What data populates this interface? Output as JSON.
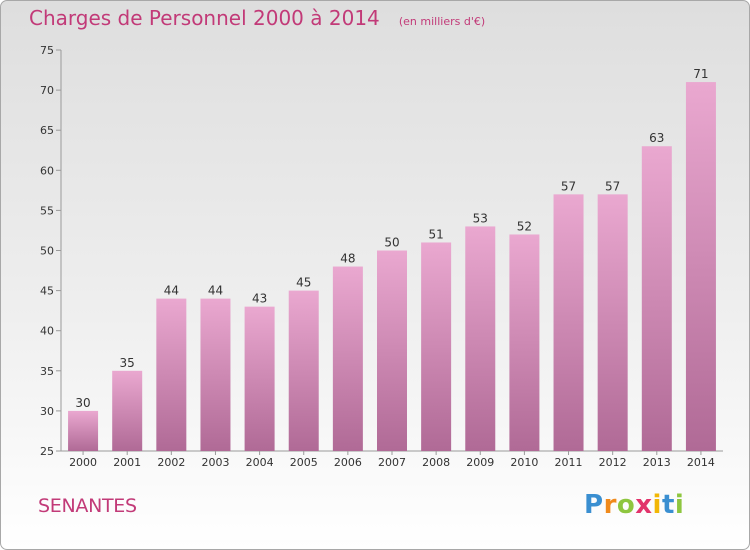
{
  "header": {
    "title": "Charges de Personnel 2000 à 2014",
    "subtitle": "(en milliers d'€)"
  },
  "commune": "SENANTES",
  "logo": {
    "letters": [
      "P",
      "r",
      "o",
      "x",
      "i",
      "t",
      "i"
    ],
    "colors": [
      "#3a8fd1",
      "#f08a1c",
      "#8ec63f",
      "#e2336b",
      "#f2b705",
      "#3a8fd1",
      "#8ec63f"
    ]
  },
  "colors": {
    "accent": "#c23a78",
    "bar_top": "#eaa8d0",
    "bar_bottom": "#b06a96"
  },
  "chart_data": {
    "type": "bar",
    "title": "Charges de Personnel 2000 à 2014",
    "subtitle": "(en milliers d'€)",
    "xlabel": "",
    "ylabel": "",
    "categories": [
      "2000",
      "2001",
      "2002",
      "2003",
      "2004",
      "2005",
      "2006",
      "2007",
      "2008",
      "2009",
      "2010",
      "2011",
      "2012",
      "2013",
      "2014"
    ],
    "values": [
      30,
      35,
      44,
      44,
      43,
      45,
      48,
      50,
      51,
      53,
      52,
      57,
      57,
      63,
      71
    ],
    "ylim": [
      25,
      75
    ],
    "yticks": [
      25,
      30,
      35,
      40,
      45,
      50,
      55,
      60,
      65,
      70,
      75
    ],
    "grid": false,
    "data_labels": true
  }
}
